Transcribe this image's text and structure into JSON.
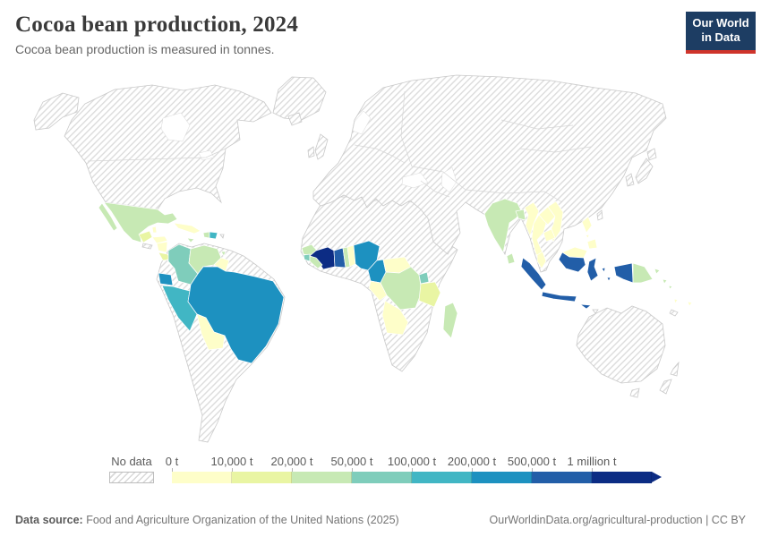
{
  "header": {
    "title": "Cocoa bean production, 2024",
    "subtitle": "Cocoa bean production is measured in tonnes.",
    "logo": {
      "line1": "Our World",
      "line2": "in Data",
      "bg": "#1d3d63",
      "accent": "#cf342b"
    }
  },
  "legend": {
    "no_data_label": "No data",
    "tick_labels": [
      "0 t",
      "10,000 t",
      "20,000 t",
      "50,000 t",
      "100,000 t",
      "200,000 t",
      "500,000 t",
      "1 million t"
    ],
    "bin_colors": [
      "#fefec9",
      "#e9f5a3",
      "#c7e9b4",
      "#7fcdbb",
      "#41b6c4",
      "#1d91c0",
      "#225ea8",
      "#0c2c84"
    ],
    "open_ended_arrow": true
  },
  "footer": {
    "datasource_label": "Data source:",
    "datasource_text": " Food and Agriculture Organization of the United Nations (2025)",
    "link_text": "OurWorldinData.org/agricultural-production | CC BY"
  },
  "chart_data": {
    "type": "choropleth_map",
    "title": "Cocoa bean production, 2024",
    "unit": "tonnes",
    "year": 2024,
    "bins": [
      "0–10,000 t",
      "10,000–20,000 t",
      "20,000–50,000 t",
      "50,000–100,000 t",
      "100,000–200,000 t",
      "200,000–500,000 t",
      "500,000 t–1 million t",
      "1 million t and more"
    ],
    "no_data_style": "gray diagonal hatching",
    "countries": [
      {
        "name": "Mexico",
        "bin": 2
      },
      {
        "name": "Belize",
        "bin": 0
      },
      {
        "name": "Guatemala",
        "bin": 1
      },
      {
        "name": "Honduras",
        "bin": 0
      },
      {
        "name": "Nicaragua",
        "bin": 0
      },
      {
        "name": "Costa Rica",
        "bin": 1
      },
      {
        "name": "Panama",
        "bin": 0
      },
      {
        "name": "Cuba",
        "bin": 0
      },
      {
        "name": "Jamaica",
        "bin": 2
      },
      {
        "name": "Haiti",
        "bin": 2
      },
      {
        "name": "Dominican Republic",
        "bin": 4
      },
      {
        "name": "Trinidad and Tobago",
        "bin": 2
      },
      {
        "name": "Colombia",
        "bin": 3
      },
      {
        "name": "Venezuela",
        "bin": 2
      },
      {
        "name": "Guyana",
        "bin": 0
      },
      {
        "name": "Ecuador",
        "bin": 5
      },
      {
        "name": "Peru",
        "bin": 4
      },
      {
        "name": "Brazil",
        "bin": 5
      },
      {
        "name": "Bolivia",
        "bin": 0
      },
      {
        "name": "Guinea",
        "bin": 2
      },
      {
        "name": "Sierra Leone",
        "bin": 3
      },
      {
        "name": "Liberia",
        "bin": 2
      },
      {
        "name": "Cote d'Ivoire",
        "bin": 7
      },
      {
        "name": "Ghana",
        "bin": 6
      },
      {
        "name": "Togo",
        "bin": 2
      },
      {
        "name": "Benin",
        "bin": 0
      },
      {
        "name": "Nigeria",
        "bin": 5
      },
      {
        "name": "Cameroon",
        "bin": 5
      },
      {
        "name": "Central African Republic",
        "bin": 0
      },
      {
        "name": "Gabon",
        "bin": 0
      },
      {
        "name": "Democratic Republic of Congo",
        "bin": 2
      },
      {
        "name": "Uganda",
        "bin": 3
      },
      {
        "name": "Tanzania",
        "bin": 1
      },
      {
        "name": "Angola",
        "bin": 0
      },
      {
        "name": "Madagascar",
        "bin": 2
      },
      {
        "name": "India",
        "bin": 2
      },
      {
        "name": "Bangladesh",
        "bin": 2
      },
      {
        "name": "Sri Lanka",
        "bin": 2
      },
      {
        "name": "Myanmar",
        "bin": 0
      },
      {
        "name": "Thailand",
        "bin": 0
      },
      {
        "name": "Laos",
        "bin": 0
      },
      {
        "name": "Vietnam",
        "bin": 0
      },
      {
        "name": "Cambodia",
        "bin": 0
      },
      {
        "name": "Malaysia",
        "bin": 0
      },
      {
        "name": "Philippines",
        "bin": 0
      },
      {
        "name": "Indonesia",
        "bin": 6
      },
      {
        "name": "Papua New Guinea",
        "bin": 2
      },
      {
        "name": "Solomon Islands",
        "bin": 2
      },
      {
        "name": "Vanuatu",
        "bin": 0
      },
      {
        "name": "Fiji",
        "bin": 0
      }
    ]
  }
}
